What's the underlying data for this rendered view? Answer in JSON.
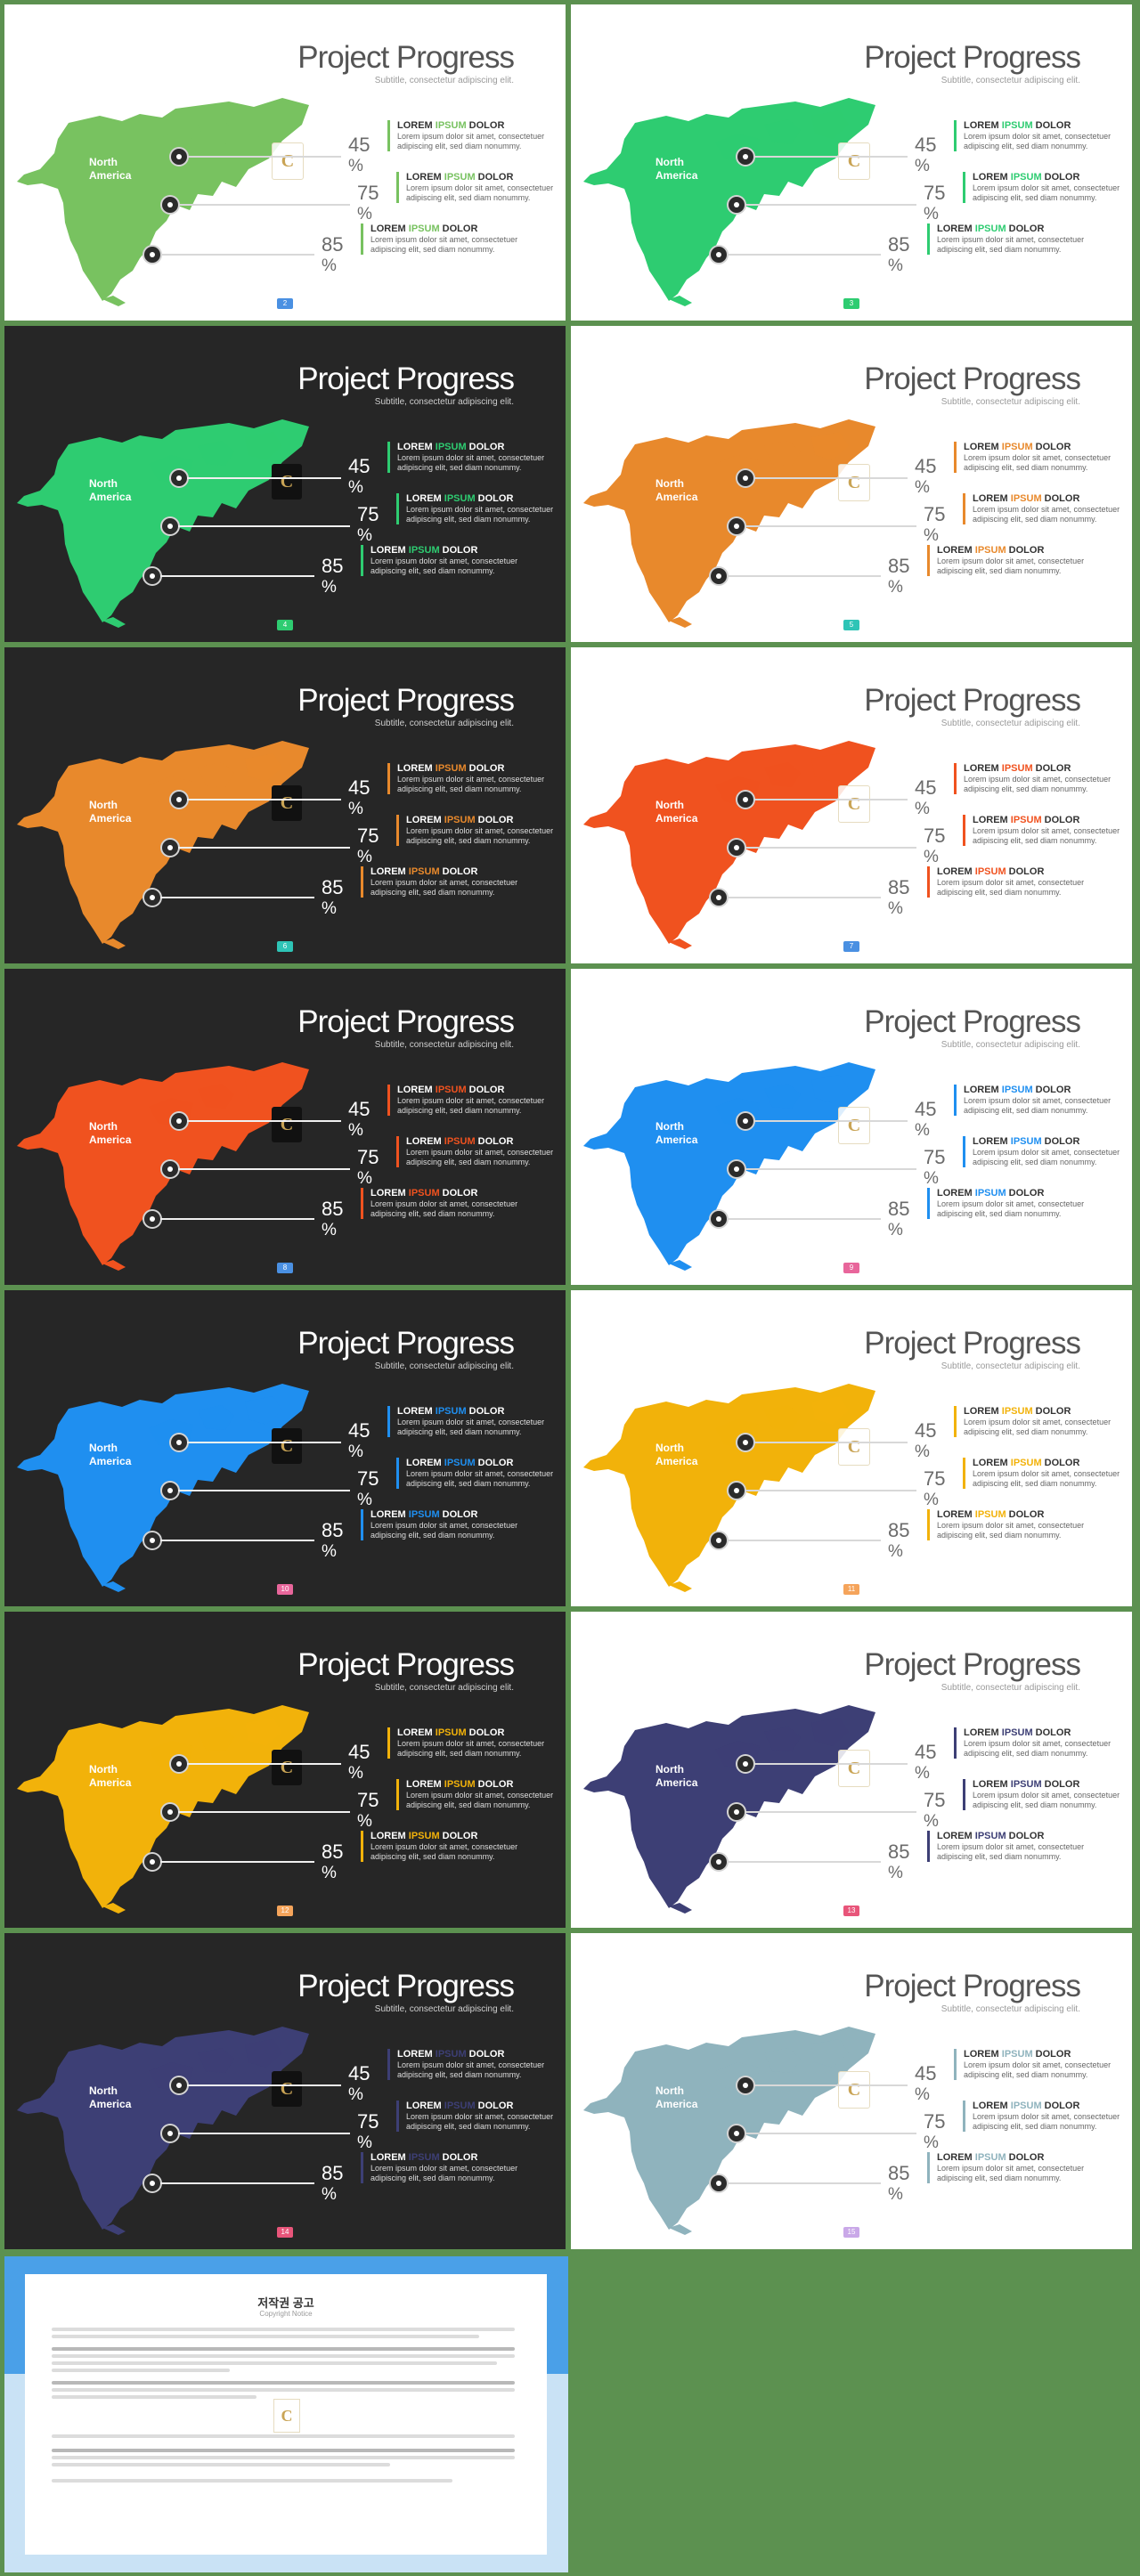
{
  "title": "Project Progress",
  "subtitle": "Subtitle, consectetur adipiscing elit.",
  "region_label": [
    "North",
    "America"
  ],
  "items": [
    {
      "head_a": "LOREM ",
      "head_b": "IPSUM",
      "head_c": " DOLOR",
      "body": [
        "Lorem ipsum dolor sit amet, consectetuer",
        "adipiscing elit, sed diam nonummy."
      ],
      "value": 45
    },
    {
      "head_a": "LOREM ",
      "head_b": "IPSUM",
      "head_c": " DOLOR",
      "body": [
        "Lorem ipsum dolor sit amet, consectetuer",
        "adipiscing elit, sed diam nonummy."
      ],
      "value": 75
    },
    {
      "head_a": "LOREM ",
      "head_b": "IPSUM",
      "head_c": " DOLOR",
      "body": [
        "Lorem ipsum dolor sit amet, consectetuer",
        "adipiscing elit, sed diam nonummy."
      ],
      "value": 85
    }
  ],
  "percent_sign": "%",
  "logo_letter": "C",
  "slides": [
    {
      "theme": "light",
      "color": "#78c260",
      "page": "2",
      "tag": "#4a90e2"
    },
    {
      "theme": "light",
      "color": "#2ecc71",
      "page": "3",
      "tag": "#2ecc71"
    },
    {
      "theme": "dark",
      "color": "#2ecc71",
      "page": "4",
      "tag": "#2ecc71"
    },
    {
      "theme": "light",
      "color": "#e8892c",
      "page": "5",
      "tag": "#2ec4b6"
    },
    {
      "theme": "dark",
      "color": "#e8892c",
      "page": "6",
      "tag": "#2ec4b6"
    },
    {
      "theme": "light",
      "color": "#f0521f",
      "page": "7",
      "tag": "#4a90e2"
    },
    {
      "theme": "dark",
      "color": "#f0521f",
      "page": "8",
      "tag": "#4a90e2"
    },
    {
      "theme": "light",
      "color": "#1f8ff0",
      "page": "9",
      "tag": "#e8669b"
    },
    {
      "theme": "dark",
      "color": "#1f8ff0",
      "page": "10",
      "tag": "#e8669b"
    },
    {
      "theme": "light",
      "color": "#f2b20a",
      "page": "11",
      "tag": "#f5a45b"
    },
    {
      "theme": "dark",
      "color": "#f2b20a",
      "page": "12",
      "tag": "#f5a45b"
    },
    {
      "theme": "light",
      "color": "#3d3f75",
      "page": "13",
      "tag": "#e8557a"
    },
    {
      "theme": "dark",
      "color": "#3d3f75",
      "page": "14",
      "tag": "#e8557a"
    },
    {
      "theme": "light",
      "color": "#8fb3bd",
      "page": "15",
      "tag": "#c9a8e8"
    }
  ],
  "copyright": {
    "title": "저작권 공고",
    "subtitle": "Copyright Notice"
  }
}
